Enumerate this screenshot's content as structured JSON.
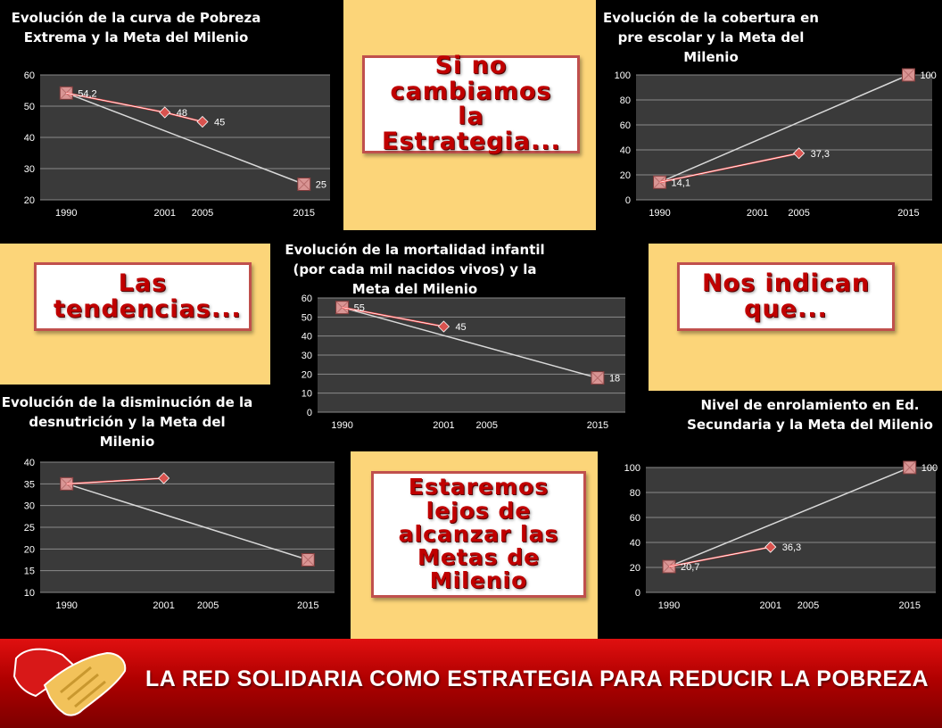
{
  "callouts": {
    "top": "Si no cambiamos la Estrategia...",
    "left": "Las tendencias...",
    "right": "Nos indican que...",
    "bottom": "Estaremos lejos de alcanzar las Metas de Milenio"
  },
  "banner": "LA RED SOLIDARIA COMO ESTRATEGIA PARA REDUCIR LA POBREZA",
  "colors": {
    "panel_bg": "#fcd579",
    "accent_red": "#c0504d",
    "chart_bg": "#3c3c3c",
    "trend_line": "#d9d9d9",
    "series_line": "#ff4b4b"
  },
  "chart_data": [
    {
      "type": "line",
      "title": "Evolución de la curva de Pobreza Extrema y la Meta del Milenio",
      "categories": [
        "1990",
        "2001",
        "2005",
        "2015"
      ],
      "ylim": [
        20,
        60
      ],
      "yticks": [
        20,
        30,
        40,
        50,
        60
      ],
      "grid": true,
      "series": [
        {
          "values": [
            54.2,
            48,
            45,
            null
          ],
          "labels": [
            "54,2",
            "48",
            "45",
            ""
          ],
          "style": "actual"
        },
        {
          "values": [
            54.2,
            null,
            null,
            25
          ],
          "labels": [
            "",
            "",
            "",
            "25"
          ],
          "style": "meta"
        }
      ]
    },
    {
      "type": "line",
      "title": "Evolución de la cobertura en pre escolar y la Meta del Milenio",
      "categories": [
        "1990",
        "2001",
        "2005",
        "2015"
      ],
      "ylim": [
        0,
        100
      ],
      "yticks": [
        0,
        20,
        40,
        60,
        80,
        100
      ],
      "grid": true,
      "series": [
        {
          "values": [
            14.1,
            null,
            37.3,
            null
          ],
          "labels": [
            "14,1",
            "",
            "37,3",
            ""
          ],
          "style": "actual"
        },
        {
          "values": [
            14.1,
            null,
            null,
            100
          ],
          "labels": [
            "",
            "",
            "",
            "100"
          ],
          "style": "meta"
        }
      ]
    },
    {
      "type": "line",
      "title": "Evolución de la mortalidad infantil (por cada mil nacidos vivos) y la Meta del Milenio",
      "categories": [
        "1990",
        "2001",
        "2005",
        "2015"
      ],
      "ylim": [
        0,
        60
      ],
      "yticks": [
        0,
        10,
        20,
        30,
        40,
        50,
        60
      ],
      "grid": true,
      "series": [
        {
          "values": [
            55,
            45,
            null,
            null
          ],
          "labels": [
            "55",
            "45",
            "",
            ""
          ],
          "style": "actual"
        },
        {
          "values": [
            55,
            null,
            null,
            18
          ],
          "labels": [
            "",
            "",
            "",
            "18"
          ],
          "style": "meta"
        }
      ]
    },
    {
      "type": "line",
      "title": "Evolución de la disminución de la desnutrición y la Meta del Milenio",
      "categories": [
        "1990",
        "2001",
        "2005",
        "2015"
      ],
      "ylim": [
        10,
        40
      ],
      "yticks": [
        10,
        15,
        20,
        25,
        30,
        35,
        40
      ],
      "grid": true,
      "series": [
        {
          "values": [
            35,
            36.3,
            null,
            null
          ],
          "labels": [
            "",
            "",
            "",
            ""
          ],
          "style": "actual"
        },
        {
          "values": [
            35,
            null,
            null,
            17.5
          ],
          "labels": [
            "",
            "",
            "",
            ""
          ],
          "style": "meta"
        }
      ]
    },
    {
      "type": "line",
      "title": "Nivel de enrolamiento en Ed. Secundaria y la Meta del Milenio",
      "categories": [
        "1990",
        "2001",
        "2005",
        "2015"
      ],
      "ylim": [
        0,
        100
      ],
      "yticks": [
        0,
        20,
        40,
        60,
        80,
        100
      ],
      "grid": true,
      "series": [
        {
          "values": [
            20.7,
            36.3,
            null,
            null
          ],
          "labels": [
            "20,7",
            "36,3",
            "",
            ""
          ],
          "style": "actual"
        },
        {
          "values": [
            20.7,
            null,
            null,
            100
          ],
          "labels": [
            "",
            "",
            "",
            "100"
          ],
          "style": "meta"
        }
      ]
    }
  ]
}
